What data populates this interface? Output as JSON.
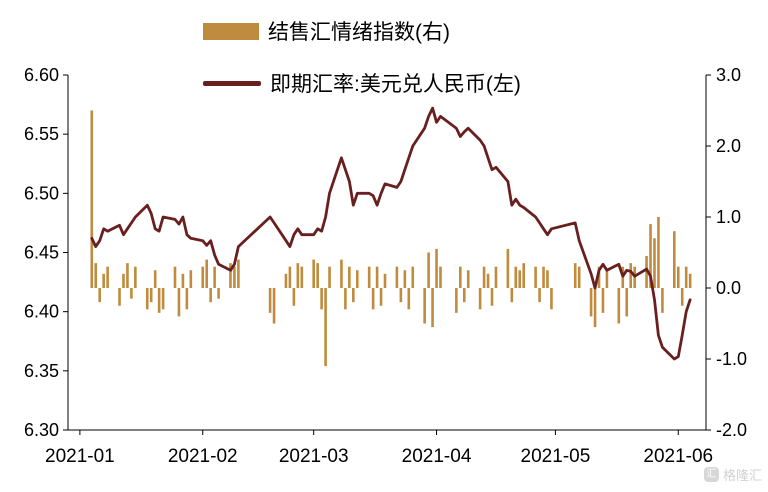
{
  "legend": [
    {
      "label": "结售汇情绪指数(右)",
      "type": "bar",
      "color": "#BF8B3E"
    },
    {
      "label": "即期汇率:美元兑人民币(左)",
      "type": "line",
      "color": "#6A1F1F"
    }
  ],
  "watermark": {
    "text": "格隆汇",
    "icon_glyph": "汇"
  },
  "chart_data": {
    "type": "combo-bar-line",
    "title": "",
    "grid": false,
    "legend_position": "top-center",
    "left_axis": {
      "min": 6.3,
      "max": 6.6,
      "ticks": [
        {
          "v": 6.6,
          "label": "6.60"
        },
        {
          "v": 6.55,
          "label": "6.55"
        },
        {
          "v": 6.5,
          "label": "6.50"
        },
        {
          "v": 6.45,
          "label": "6.45"
        },
        {
          "v": 6.4,
          "label": "6.40"
        },
        {
          "v": 6.35,
          "label": "6.35"
        },
        {
          "v": 6.3,
          "label": "6.30"
        }
      ]
    },
    "right_axis": {
      "min": -2.0,
      "max": 3.0,
      "ticks": [
        {
          "v": 3.0,
          "label": "3.0"
        },
        {
          "v": 2.0,
          "label": "2.0"
        },
        {
          "v": 1.0,
          "label": "1.0"
        },
        {
          "v": 0.0,
          "label": "0.0"
        },
        {
          "v": -1.0,
          "label": "-1.0"
        },
        {
          "v": -2.0,
          "label": "-2.0"
        }
      ]
    },
    "x_ticks": [
      {
        "date": "2021-01-01",
        "label": "2021-01"
      },
      {
        "date": "2021-02-01",
        "label": "2021-02"
      },
      {
        "date": "2021-03-01",
        "label": "2021-03"
      },
      {
        "date": "2021-04-01",
        "label": "2021-04"
      },
      {
        "date": "2021-05-01",
        "label": "2021-05"
      },
      {
        "date": "2021-06-01",
        "label": "2021-06"
      }
    ],
    "x_range": {
      "start": "2020-12-29",
      "end": "2021-06-08"
    },
    "dates": [
      "2021-01-04",
      "2021-01-05",
      "2021-01-06",
      "2021-01-07",
      "2021-01-08",
      "2021-01-11",
      "2021-01-12",
      "2021-01-13",
      "2021-01-14",
      "2021-01-15",
      "2021-01-18",
      "2021-01-19",
      "2021-01-20",
      "2021-01-21",
      "2021-01-22",
      "2021-01-25",
      "2021-01-26",
      "2021-01-27",
      "2021-01-28",
      "2021-01-29",
      "2021-02-01",
      "2021-02-02",
      "2021-02-03",
      "2021-02-04",
      "2021-02-05",
      "2021-02-08",
      "2021-02-09",
      "2021-02-10",
      "2021-02-18",
      "2021-02-19",
      "2021-02-22",
      "2021-02-23",
      "2021-02-24",
      "2021-02-25",
      "2021-02-26",
      "2021-03-01",
      "2021-03-02",
      "2021-03-03",
      "2021-03-04",
      "2021-03-05",
      "2021-03-08",
      "2021-03-09",
      "2021-03-10",
      "2021-03-11",
      "2021-03-12",
      "2021-03-15",
      "2021-03-16",
      "2021-03-17",
      "2021-03-18",
      "2021-03-19",
      "2021-03-22",
      "2021-03-23",
      "2021-03-24",
      "2021-03-25",
      "2021-03-26",
      "2021-03-29",
      "2021-03-30",
      "2021-03-31",
      "2021-04-01",
      "2021-04-02",
      "2021-04-06",
      "2021-04-07",
      "2021-04-08",
      "2021-04-09",
      "2021-04-12",
      "2021-04-13",
      "2021-04-14",
      "2021-04-15",
      "2021-04-16",
      "2021-04-19",
      "2021-04-20",
      "2021-04-21",
      "2021-04-22",
      "2021-04-23",
      "2021-04-26",
      "2021-04-27",
      "2021-04-28",
      "2021-04-29",
      "2021-04-30",
      "2021-05-06",
      "2021-05-07",
      "2021-05-10",
      "2021-05-11",
      "2021-05-12",
      "2021-05-13",
      "2021-05-14",
      "2021-05-17",
      "2021-05-18",
      "2021-05-19",
      "2021-05-20",
      "2021-05-21",
      "2021-05-24",
      "2021-05-25",
      "2021-05-26",
      "2021-05-27",
      "2021-05-28",
      "2021-05-31",
      "2021-06-01",
      "2021-06-02",
      "2021-06-03",
      "2021-06-04"
    ],
    "series": [
      {
        "name": "结售汇情绪指数(右)",
        "type": "bar",
        "axis": "right",
        "color": "#BF8B3E",
        "values": [
          2.5,
          0.35,
          -0.2,
          0.2,
          0.3,
          -0.25,
          0.2,
          0.35,
          -0.15,
          0.3,
          -0.3,
          -0.2,
          0.25,
          -0.35,
          -0.3,
          0.3,
          -0.4,
          0.2,
          -0.3,
          0.25,
          0.3,
          0.4,
          -0.2,
          0.3,
          -0.15,
          0.35,
          0.3,
          0.4,
          -0.35,
          -0.5,
          0.2,
          0.3,
          -0.25,
          0.35,
          0.3,
          0.4,
          0.35,
          -0.3,
          -1.1,
          0.3,
          0.4,
          -0.3,
          0.3,
          -0.2,
          0.25,
          0.3,
          -0.3,
          0.3,
          -0.25,
          0.2,
          0.3,
          -0.2,
          0.25,
          -0.3,
          0.3,
          -0.5,
          0.5,
          -0.55,
          0.55,
          0.3,
          -0.35,
          0.3,
          -0.2,
          0.25,
          -0.3,
          0.3,
          0.2,
          -0.25,
          0.3,
          0.55,
          -0.2,
          0.3,
          0.25,
          0.35,
          0.3,
          -0.2,
          0.3,
          0.25,
          -0.3,
          0.35,
          0.3,
          -0.4,
          -0.55,
          0.3,
          -0.35,
          0.25,
          -0.5,
          0.3,
          -0.4,
          0.35,
          0.3,
          0.45,
          0.9,
          0.7,
          1.0,
          -0.35,
          0.8,
          0.3,
          -0.25,
          0.3,
          0.2
        ]
      },
      {
        "name": "即期汇率:美元兑人民币(左)",
        "type": "line",
        "axis": "left",
        "color": "#6A1F1F",
        "values": [
          6.462,
          6.455,
          6.46,
          6.47,
          6.468,
          6.473,
          6.465,
          6.47,
          6.475,
          6.48,
          6.49,
          6.483,
          6.47,
          6.468,
          6.48,
          6.478,
          6.474,
          6.48,
          6.465,
          6.462,
          6.46,
          6.456,
          6.46,
          6.448,
          6.44,
          6.435,
          6.44,
          6.455,
          6.48,
          6.475,
          6.46,
          6.455,
          6.465,
          6.47,
          6.465,
          6.465,
          6.47,
          6.468,
          6.48,
          6.5,
          6.53,
          6.52,
          6.51,
          6.49,
          6.5,
          6.5,
          6.498,
          6.49,
          6.5,
          6.508,
          6.505,
          6.51,
          6.52,
          6.53,
          6.54,
          6.555,
          6.565,
          6.572,
          6.56,
          6.565,
          6.555,
          6.548,
          6.552,
          6.555,
          6.545,
          6.54,
          6.53,
          6.52,
          6.522,
          6.51,
          6.49,
          6.495,
          6.49,
          6.488,
          6.48,
          6.475,
          6.47,
          6.465,
          6.47,
          6.475,
          6.46,
          6.432,
          6.42,
          6.435,
          6.44,
          6.435,
          6.44,
          6.43,
          6.435,
          6.434,
          6.43,
          6.436,
          6.43,
          6.41,
          6.38,
          6.37,
          6.36,
          6.362,
          6.38,
          6.4,
          6.41
        ]
      }
    ]
  }
}
